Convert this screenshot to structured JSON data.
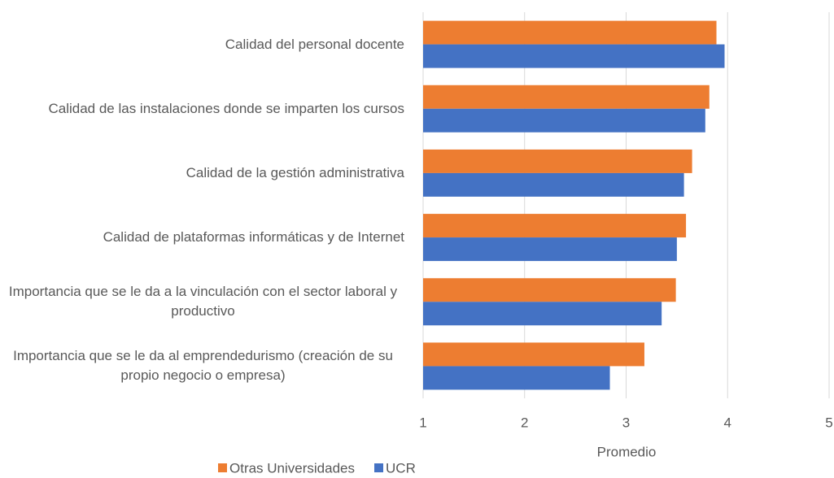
{
  "chart_data": {
    "type": "bar",
    "orientation": "horizontal",
    "categories": [
      "Calidad del personal docente",
      "Calidad de las instalaciones donde se imparten los cursos",
      "Calidad de la gestión administrativa",
      "Calidad de plataformas informáticas y de Internet",
      "Importancia que se le da a la vinculación con el sector laboral y productivo",
      "Importancia que se le da al emprendedurismo (creación de su propio negocio o empresa)"
    ],
    "series": [
      {
        "name": "Otras Universidades",
        "color": "#ed7d31",
        "values": [
          3.89,
          3.82,
          3.65,
          3.59,
          3.49,
          3.18
        ]
      },
      {
        "name": "UCR",
        "color": "#4472c4",
        "values": [
          3.97,
          3.78,
          3.57,
          3.5,
          3.35,
          2.84
        ]
      }
    ],
    "xlabel": "Promedio",
    "xlim": [
      1,
      5
    ],
    "xticks": [
      1,
      2,
      3,
      4,
      5
    ],
    "grid": true,
    "legend": "bottom-left"
  }
}
